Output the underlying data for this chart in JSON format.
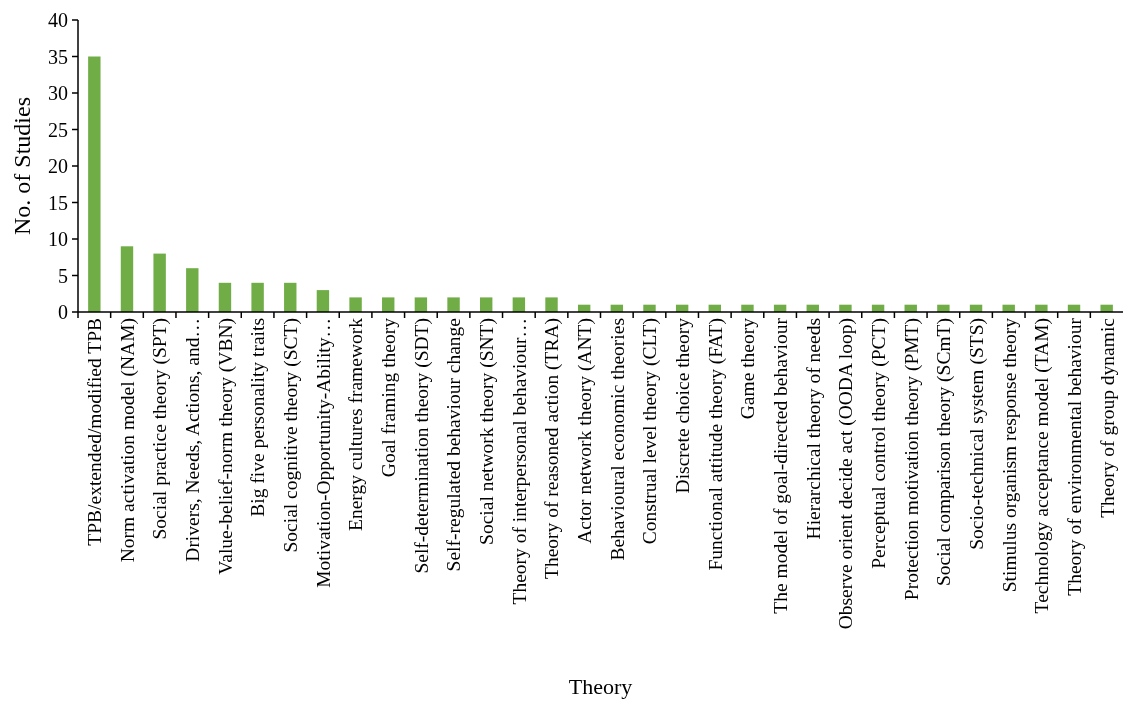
{
  "chart_data": {
    "type": "bar",
    "xlabel": "Theory",
    "ylabel": "No. of Studies",
    "color": "#70ad47",
    "ylim": [
      0,
      40
    ],
    "yticks": [
      0,
      5,
      10,
      15,
      20,
      25,
      30,
      35,
      40
    ],
    "grid": false,
    "categories": [
      "TPB/extended/modified TPB",
      "Norm activation model (NAM)",
      "Social practice theory (SPT)",
      "Drivers, Needs, Actions, and…",
      "Value-belief-norm theory (VBN)",
      "Big five personality traits",
      "Social cognitive theory (SCT)",
      "Motivation-Opportunity-Ability…",
      "Energy cultures framework",
      "Goal framing theory",
      "Self-determination theory (SDT)",
      "Self-regulated behaviour change",
      "Social network theory (SNT)",
      "Theory of interpersonal behaviour…",
      "Theory of reasoned action (TRA)",
      "Actor network theory (ANT)",
      "Behavioural economic theories",
      "Construal level theory (CLT)",
      "Discrete choice theory",
      "Functional attitude theory (FAT)",
      "Game theory",
      "The model of goal-directed behaviour",
      "Hierarchical theory of needs",
      "Observe orient decide act (OODA loop)",
      "Perceptual control theory (PCT)",
      "Protection motivation theory (PMT)",
      "Social comparison theory (SCmT)",
      "Socio-technical system (STS)",
      "Stimulus organism response theory",
      "Technology acceptance model (TAM)",
      "Theory of environmental behaviour",
      "Theory of group dynamic"
    ],
    "values": [
      35,
      9,
      8,
      6,
      4,
      4,
      4,
      3,
      2,
      2,
      2,
      2,
      2,
      2,
      2,
      1,
      1,
      1,
      1,
      1,
      1,
      1,
      1,
      1,
      1,
      1,
      1,
      1,
      1,
      1,
      1,
      1
    ]
  }
}
